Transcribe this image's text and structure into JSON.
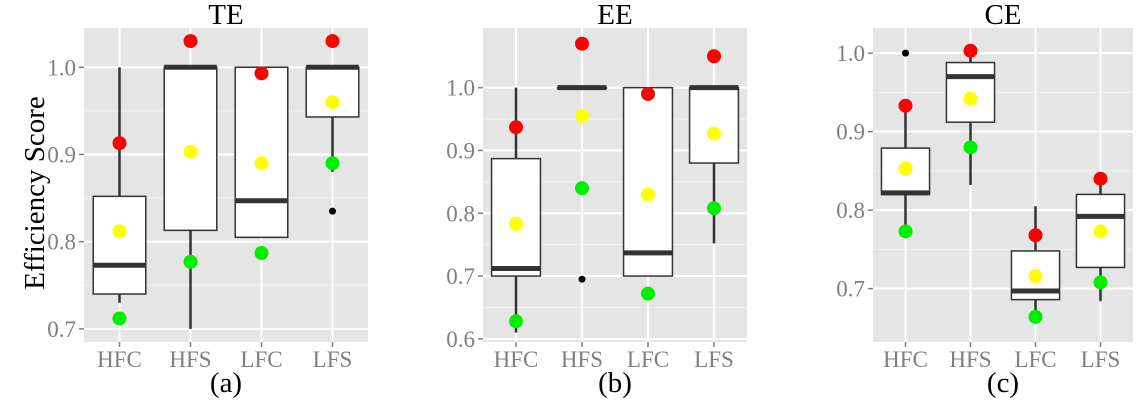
{
  "figure": {
    "ylabel": "Efficiency Score",
    "colors": {
      "panel_bg": "#e5e5e5",
      "grid": "#ffffff",
      "box_fill": "#ffffff",
      "box_line": "#333333",
      "median": "#333333",
      "outlier": "#000000",
      "upper": "#ff0000",
      "mean": "#ffff00",
      "lower": "#00ee00",
      "tick_text": "#7f7f7f",
      "title_text": "#000000"
    }
  },
  "chart_data": [
    {
      "type": "boxplot",
      "title": "TE",
      "sublabel": "(a)",
      "xlabel": "",
      "ylabel": "Efficiency Score",
      "ylim": [
        0.685,
        1.045
      ],
      "yticks": [
        0.7,
        0.8,
        0.9,
        1.0
      ],
      "ytick_labels": [
        "0.7",
        "0.8",
        "0.9",
        "1.0"
      ],
      "grid": true,
      "categories": [
        "HFC",
        "HFS",
        "LFC",
        "LFS"
      ],
      "boxes": [
        {
          "whisker_low": 0.73,
          "q1": 0.74,
          "median": 0.773,
          "q3": 0.852,
          "whisker_high": 1.0,
          "outliers": []
        },
        {
          "whisker_low": 0.7,
          "q1": 0.813,
          "median": 1.0,
          "q3": 1.0,
          "whisker_high": 1.0,
          "outliers": []
        },
        {
          "whisker_low": 0.805,
          "q1": 0.805,
          "median": 0.847,
          "q3": 1.0,
          "whisker_high": 1.0,
          "outliers": []
        },
        {
          "whisker_low": 0.88,
          "q1": 0.943,
          "median": 1.0,
          "q3": 1.0,
          "whisker_high": 1.0,
          "outliers": [
            0.835
          ]
        }
      ],
      "upper_points": [
        0.913,
        1.03,
        0.993,
        1.03
      ],
      "mean_points": [
        0.812,
        0.903,
        0.89,
        0.96
      ],
      "lower_points": [
        0.712,
        0.777,
        0.787,
        0.89
      ]
    },
    {
      "type": "boxplot",
      "title": "EE",
      "sublabel": "(b)",
      "xlabel": "",
      "ylabel": "",
      "ylim": [
        0.595,
        1.095
      ],
      "yticks": [
        0.6,
        0.7,
        0.8,
        0.9,
        1.0
      ],
      "ytick_labels": [
        "0.6",
        "0.7",
        "0.8",
        "0.9",
        "1.0"
      ],
      "grid": true,
      "categories": [
        "HFC",
        "HFS",
        "LFC",
        "LFS"
      ],
      "boxes": [
        {
          "whisker_low": 0.61,
          "q1": 0.7,
          "median": 0.712,
          "q3": 0.887,
          "whisker_high": 1.0,
          "outliers": []
        },
        {
          "whisker_low": 1.0,
          "q1": 1.0,
          "median": 1.0,
          "q3": 1.0,
          "whisker_high": 1.0,
          "outliers": [
            0.695
          ]
        },
        {
          "whisker_low": 0.7,
          "q1": 0.7,
          "median": 0.737,
          "q3": 1.0,
          "whisker_high": 1.0,
          "outliers": []
        },
        {
          "whisker_low": 0.752,
          "q1": 0.88,
          "median": 1.0,
          "q3": 1.0,
          "whisker_high": 1.0,
          "outliers": []
        }
      ],
      "upper_points": [
        0.937,
        1.07,
        0.99,
        1.05
      ],
      "mean_points": [
        0.783,
        0.955,
        0.83,
        0.927
      ],
      "lower_points": [
        0.628,
        0.84,
        0.672,
        0.808
      ]
    },
    {
      "type": "boxplot",
      "title": "CE",
      "sublabel": "(c)",
      "xlabel": "",
      "ylabel": "",
      "ylim": [
        0.632,
        1.032
      ],
      "yticks": [
        0.7,
        0.8,
        0.9,
        1.0
      ],
      "ytick_labels": [
        "0.7",
        "0.8",
        "0.9",
        "1.0"
      ],
      "grid": true,
      "categories": [
        "HFC",
        "HFS",
        "LFC",
        "LFS"
      ],
      "boxes": [
        {
          "whisker_low": 0.775,
          "q1": 0.82,
          "median": 0.822,
          "q3": 0.879,
          "whisker_high": 0.93,
          "outliers": [
            1.0
          ]
        },
        {
          "whisker_low": 0.832,
          "q1": 0.912,
          "median": 0.97,
          "q3": 0.988,
          "whisker_high": 1.0,
          "outliers": []
        },
        {
          "whisker_low": 0.665,
          "q1": 0.686,
          "median": 0.697,
          "q3": 0.748,
          "whisker_high": 0.805,
          "outliers": []
        },
        {
          "whisker_low": 0.684,
          "q1": 0.727,
          "median": 0.792,
          "q3": 0.82,
          "whisker_high": 0.845,
          "outliers": []
        }
      ],
      "upper_points": [
        0.933,
        1.003,
        0.768,
        0.84
      ],
      "mean_points": [
        0.853,
        0.942,
        0.716,
        0.773
      ],
      "lower_points": [
        0.773,
        0.88,
        0.664,
        0.708
      ]
    }
  ]
}
